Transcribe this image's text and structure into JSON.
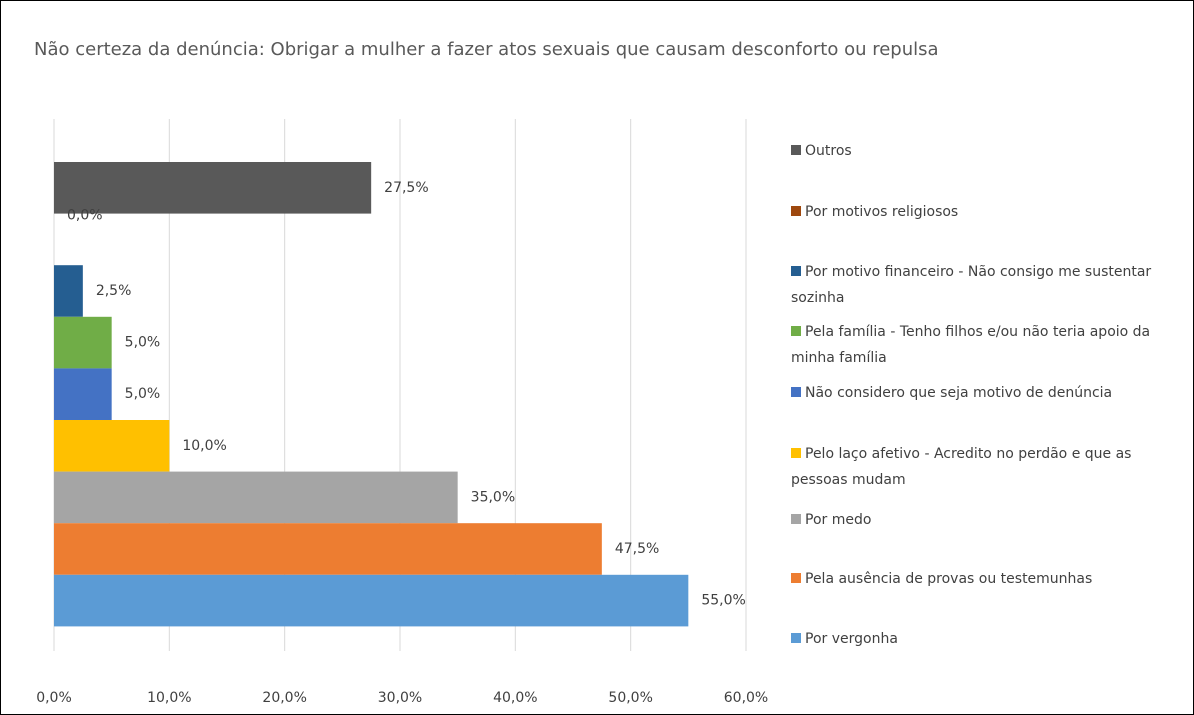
{
  "chart_data": {
    "type": "bar",
    "orientation": "horizontal",
    "title": "Não certeza da denúncia: Obrigar a mulher a fazer atos sexuais que causam desconforto ou repulsa",
    "series": [
      {
        "name": "Outros",
        "color": "#595959",
        "values": [
          27.5
        ],
        "value_labels": [
          "27,5%"
        ]
      },
      {
        "name": "Por motivos religiosos",
        "color": "#9e480e",
        "values": [
          0
        ],
        "value_labels": [
          "0,0%"
        ]
      },
      {
        "name": "Por motivo financeiro - Não consigo me sustentar sozinha",
        "color": "#255e91",
        "values": [
          2.5
        ],
        "value_labels": [
          "2,5%"
        ]
      },
      {
        "name": "Pela família - Tenho filhos e/ou não teria apoio da minha família",
        "color": "#70ad47",
        "values": [
          5
        ],
        "value_labels": [
          "5,0%"
        ]
      },
      {
        "name": "Não considero que seja motivo de denúncia",
        "color": "#4472c4",
        "values": [
          5
        ],
        "value_labels": [
          "5,0%"
        ]
      },
      {
        "name": "Pelo laço afetivo - Acredito no perdão e que as pessoas mudam",
        "color": "#ffc000",
        "values": [
          10
        ],
        "value_labels": [
          "10,0%"
        ]
      },
      {
        "name": "Por medo",
        "color": "#a5a5a5",
        "values": [
          35
        ],
        "value_labels": [
          "35,0%"
        ]
      },
      {
        "name": "Pela ausência de provas ou testemunhas",
        "color": "#ed7d31",
        "values": [
          47.5
        ],
        "value_labels": [
          "47,5%"
        ]
      },
      {
        "name": "Por vergonha",
        "color": "#5b9bd5",
        "values": [
          55
        ],
        "value_labels": [
          "55,0%"
        ]
      }
    ],
    "xlim": [
      0,
      60
    ],
    "xticks": [
      {
        "value": 0,
        "label": "0,0%"
      },
      {
        "value": 10,
        "label": "10,0%"
      },
      {
        "value": 20,
        "label": "20,0%"
      },
      {
        "value": 30,
        "label": "30,0%"
      },
      {
        "value": 40,
        "label": "40,0%"
      },
      {
        "value": 50,
        "label": "50,0%"
      },
      {
        "value": 60,
        "label": "60,0%"
      }
    ],
    "grid": true,
    "legend": "right"
  }
}
